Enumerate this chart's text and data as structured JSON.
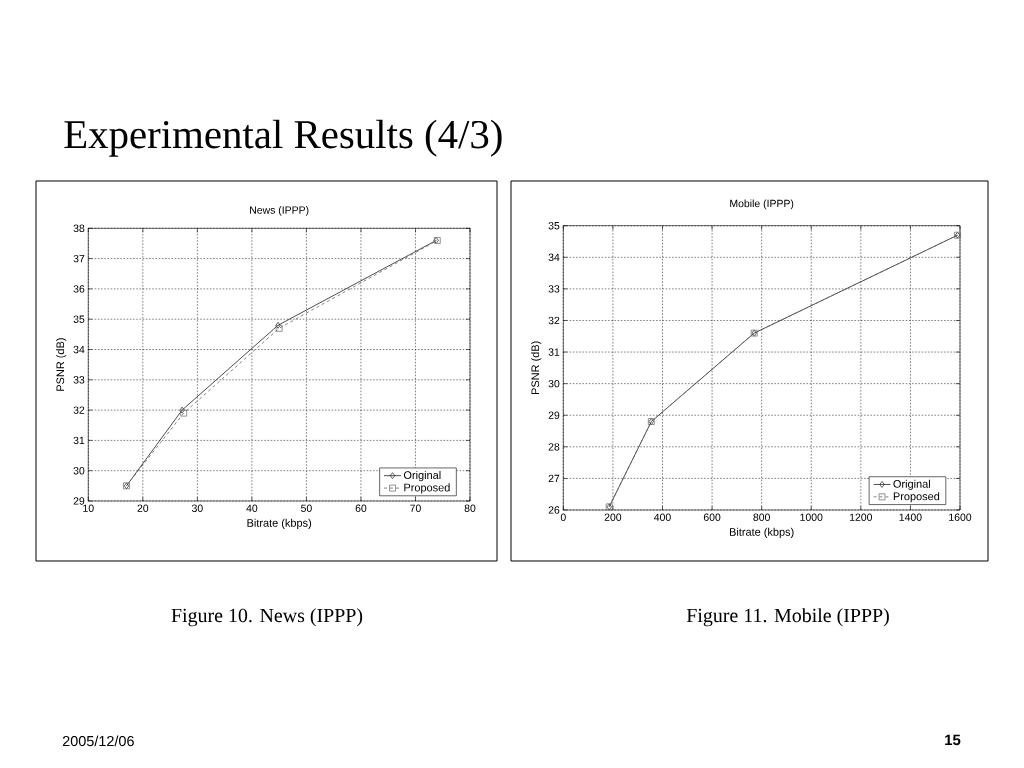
{
  "chart_data": [
    {
      "type": "line",
      "title": "News (IPPP)",
      "xlabel": "Bitrate (kbps)",
      "ylabel": "PSNR (dB)",
      "annotations": [
        "Experimental Results (4/3)",
        "Figure 10. News (IPPP)",
        "2005/12/06",
        "15"
      ],
      "xlim": [
        10,
        80
      ],
      "ylim": [
        29,
        38
      ],
      "xticks": [
        10,
        20,
        30,
        40,
        50,
        60,
        70,
        80
      ],
      "yticks": [
        29,
        30,
        31,
        32,
        33,
        34,
        35,
        36,
        37,
        38
      ],
      "grid": true,
      "legend": "bottom right",
      "series": [
        {
          "name": "Original",
          "color": "#222222",
          "marker": "diamond",
          "line_style": "solid",
          "x": [
            17,
            27.2,
            44.8,
            73.8
          ],
          "values": [
            29.5,
            32.0,
            34.8,
            37.6
          ]
        },
        {
          "name": "Proposed",
          "color": "#666666",
          "marker": "square",
          "line_style": "dashed",
          "x": [
            17,
            27.5,
            45,
            74
          ],
          "values": [
            29.5,
            31.9,
            34.7,
            37.6
          ]
        }
      ]
    },
    {
      "type": "line",
      "title": "Mobile (IPPP)",
      "xlabel": "Bitrate (kbps)",
      "ylabel": "PSNR (dB)",
      "annotations": [
        "Figure 11. Mobile (IPPP)"
      ],
      "xlim": [
        0,
        1600
      ],
      "ylim": [
        26,
        35
      ],
      "xticks": [
        0,
        200,
        400,
        600,
        800,
        1000,
        1200,
        1400,
        1600
      ],
      "yticks": [
        26,
        27,
        28,
        29,
        30,
        31,
        32,
        33,
        34,
        35
      ],
      "grid": true,
      "legend": "bottom right",
      "series": [
        {
          "name": "Original",
          "color": "#222222",
          "marker": "diamond",
          "line_style": "solid",
          "x": [
            185,
            355,
            770,
            1590
          ],
          "values": [
            26.1,
            28.8,
            31.6,
            34.7
          ]
        },
        {
          "name": "Proposed",
          "color": "#666666",
          "marker": "square",
          "line_style": "dashed",
          "x": [
            185,
            355,
            770,
            1590
          ],
          "values": [
            26.1,
            28.8,
            31.6,
            34.7
          ]
        }
      ]
    }
  ]
}
